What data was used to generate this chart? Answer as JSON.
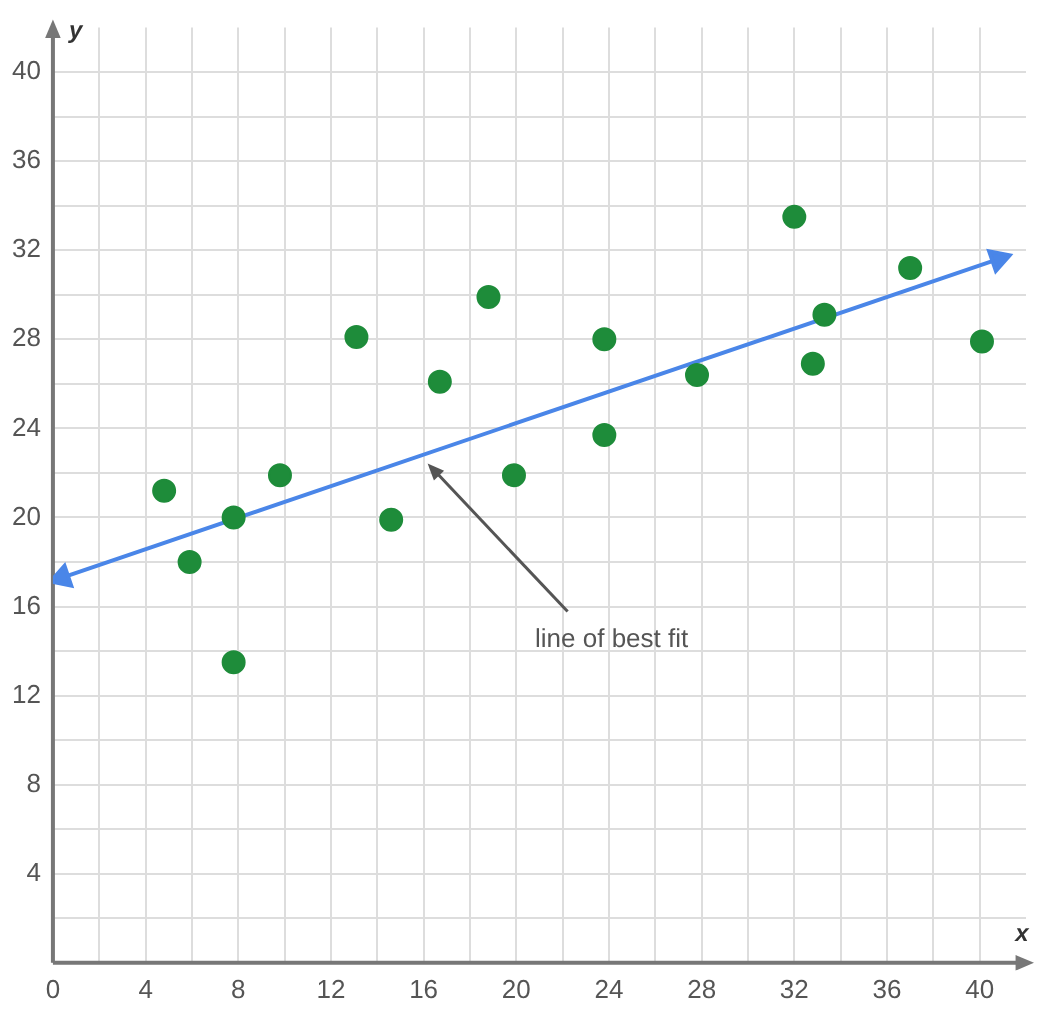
{
  "chart_data": {
    "type": "scatter",
    "xlabel": "x",
    "ylabel": "y",
    "xlim": [
      0,
      42
    ],
    "ylim": [
      0,
      42
    ],
    "xticks": [
      {
        "value": 0,
        "label": "0"
      },
      {
        "value": 2,
        "label": null
      },
      4,
      {
        "value": 6,
        "label": null
      },
      8,
      {
        "value": 10,
        "label": null
      },
      12,
      {
        "value": 14,
        "label": null
      },
      16,
      {
        "value": 18,
        "label": null
      },
      20,
      {
        "value": 22,
        "label": null
      },
      24,
      {
        "value": 26,
        "label": null
      },
      28,
      {
        "value": 30,
        "label": null
      },
      32,
      {
        "value": 34,
        "label": null
      },
      36,
      {
        "value": 38,
        "label": null
      },
      40
    ],
    "yticks": [
      {
        "value": 0,
        "label": null
      },
      {
        "value": 2,
        "label": null
      },
      4,
      {
        "value": 6,
        "label": null
      },
      8,
      {
        "value": 10,
        "label": null
      },
      12,
      {
        "value": 14,
        "label": null
      },
      16,
      {
        "value": 18,
        "label": null
      },
      20,
      {
        "value": 22,
        "label": null
      },
      24,
      {
        "value": 26,
        "label": null
      },
      28,
      {
        "value": 30,
        "label": null
      },
      32,
      {
        "value": 34,
        "label": null
      },
      36,
      {
        "value": 38,
        "label": null
      },
      40
    ],
    "grid": true,
    "marker": "circle",
    "line_style": "solid",
    "series": [
      {
        "type": "scatter",
        "color": "#1e8c3a",
        "x": [
          4.8,
          5.9,
          7.8,
          7.8,
          9.8,
          13.1,
          14.6,
          16.7,
          18.8,
          19.9,
          23.8,
          23.8,
          27.8,
          32,
          32.8,
          33.3,
          37,
          40.1
        ],
        "values": [
          21.2,
          18,
          20,
          13.5,
          21.9,
          28.1,
          19.9,
          26.1,
          29.9,
          21.9,
          28,
          23.7,
          26.4,
          33.5,
          26.9,
          29.1,
          31.2,
          27.9
        ]
      },
      {
        "type": "line",
        "marker": "triangle",
        "color": "#4a86e8",
        "x": [
          0.4,
          40.8
        ],
        "values": [
          17.3,
          31.6
        ]
      }
    ],
    "annotations": [
      {
        "text": "line of best fit",
        "x": 16,
        "y": 22.6
      }
    ]
  }
}
